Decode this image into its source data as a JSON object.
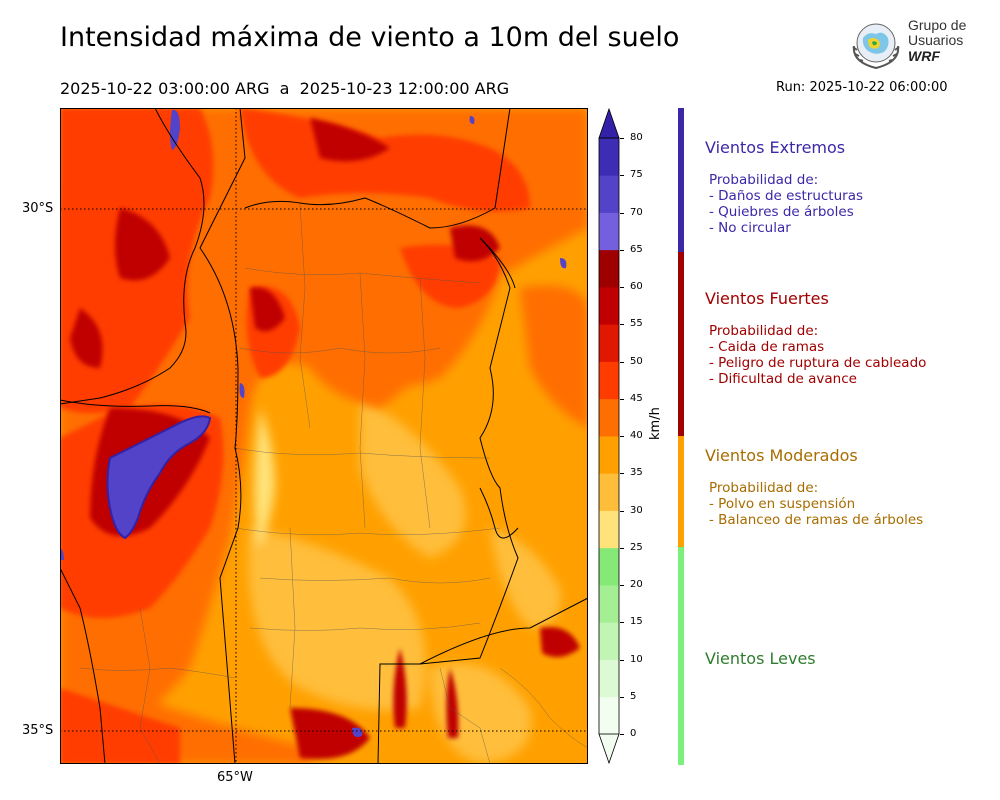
{
  "title": "Intensidad máxima de viento a 10m del suelo",
  "period": "2025-10-22 03:00:00 ARG  a  2025-10-23 12:00:00 ARG",
  "run": "Run: 2025-10-22 06:00:00",
  "logo": {
    "line1": "Grupo de",
    "line2": "Usuarios",
    "line3": "WRF"
  },
  "map": {
    "lat_labels": [
      "30°S",
      "35°S"
    ],
    "lon_labels": [
      "65°W"
    ]
  },
  "colorbar": {
    "unit": "km/h",
    "ticks": [
      "0",
      "5",
      "10",
      "15",
      "20",
      "25",
      "30",
      "35",
      "40",
      "45",
      "50",
      "55",
      "60",
      "65",
      "70",
      "75",
      "80"
    ],
    "colors": [
      "#f2fff0",
      "#dcfbd4",
      "#c1f5b4",
      "#a4ee94",
      "#86e876",
      "#ffe37a",
      "#ffbe3a",
      "#ffa000",
      "#ff6e00",
      "#ff3c00",
      "#e01800",
      "#c00000",
      "#9e0000",
      "#7460df",
      "#5243c8",
      "#3d2db4",
      "#3322a8"
    ]
  },
  "categories": [
    {
      "title": "Vientos Extremos",
      "color": "#3b28a8",
      "header": "Probabilidad de:",
      "items": [
        "- Daños de estructuras",
        "- Quiebres de árboles",
        "- No circular"
      ]
    },
    {
      "title": "Vientos Fuertes",
      "color": "#a00000",
      "header": "Probabilidad de:",
      "items": [
        "- Caida de ramas",
        "- Peligro de ruptura de cableado",
        "- Dificultad de avance"
      ]
    },
    {
      "title": "Vientos Moderados",
      "color": "#a86c00",
      "header": "Probabilidad de:",
      "items": [
        "- Polvo en suspensión",
        "- Balanceo de ramas de árboles"
      ]
    },
    {
      "title": "Vientos Leves",
      "color": "#2e7d2e",
      "header": "",
      "items": []
    }
  ]
}
